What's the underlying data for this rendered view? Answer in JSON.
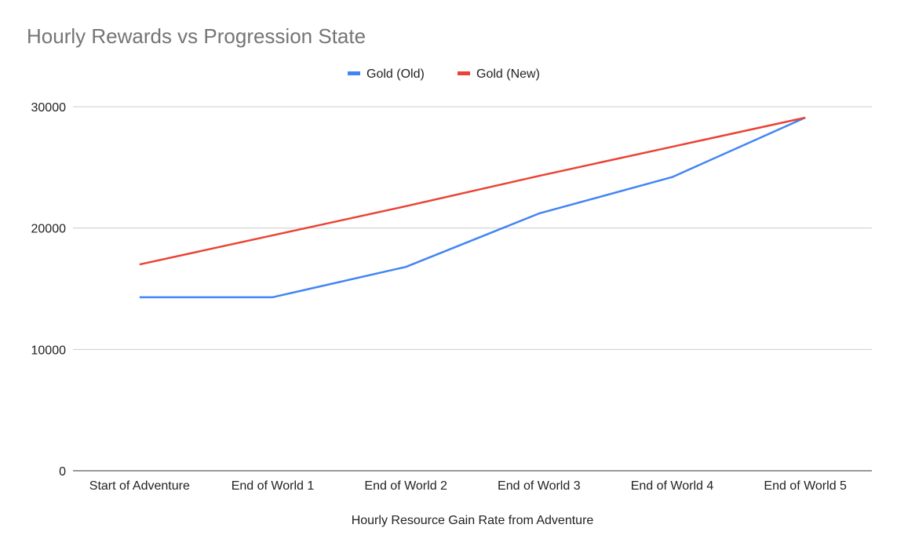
{
  "chart_data": {
    "type": "line",
    "title": "Hourly Rewards vs Progression State",
    "xlabel": "Hourly Resource Gain Rate from Adventure",
    "ylabel": "",
    "categories": [
      "Start of Adventure",
      "End of World 1",
      "End of World 2",
      "End of World 3",
      "End of World 4",
      "End of World 5"
    ],
    "series": [
      {
        "name": "Gold (Old)",
        "color": "#4285f4",
        "values": [
          14300,
          14300,
          16800,
          21200,
          24200,
          29100
        ]
      },
      {
        "name": "Gold (New)",
        "color": "#ea4335",
        "values": [
          17000,
          19400,
          21800,
          24300,
          26700,
          29100
        ]
      }
    ],
    "ylim": [
      0,
      30000
    ],
    "yticks": [
      "0",
      "10000",
      "20000",
      "30000"
    ],
    "grid": true,
    "legend_position": "top-center"
  }
}
